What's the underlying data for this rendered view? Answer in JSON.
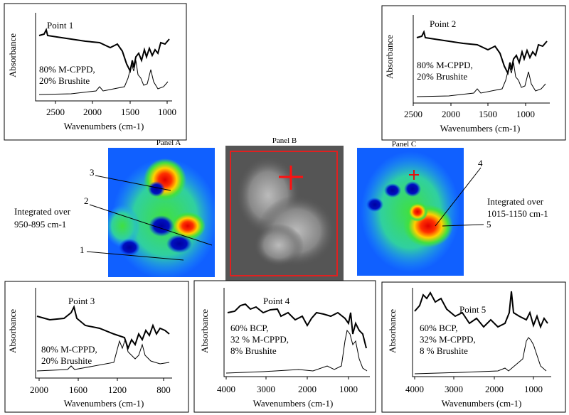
{
  "spectra": [
    {
      "label": "Point 1",
      "composition": [
        "80% M-CPPD,",
        "20% Brushite"
      ],
      "x_label": "Wavenumbers (cm-1)",
      "y_label": "Absorbance",
      "xticks": [
        "2500",
        "2000",
        "1500",
        "1000"
      ]
    },
    {
      "label": "Point 2",
      "composition": [
        "80% M-CPPD,",
        "20% Brushite"
      ],
      "x_label": "Wavenumbers (cm-1)",
      "y_label": "Absorbance",
      "xticks": [
        "2500",
        "2000",
        "1500",
        "1000"
      ]
    },
    {
      "label": "Point 3",
      "composition": [
        "80% M-CPPD,",
        "20% Brushite"
      ],
      "x_label": "Wavenumbers (cm-1)",
      "y_label": "Absorbance",
      "xticks": [
        "2000",
        "1600",
        "1200",
        "800"
      ]
    },
    {
      "label": "Point 4",
      "composition": [
        "60% BCP,",
        "32 % M-CPPD,",
        "8% Brushite"
      ],
      "x_label": "Wavenumbers (cm-1)",
      "y_label": "Absorbance",
      "xticks": [
        "4000",
        "3000",
        "2000",
        "1000"
      ]
    },
    {
      "label": "Point 5",
      "composition": [
        "60% BCP,",
        "32% M-CPPD,",
        "8 % Brushite"
      ],
      "x_label": "Wavenumbers (cm-1)",
      "y_label": "Absorbance",
      "xticks": [
        "4000",
        "3000",
        "2000",
        "1000"
      ]
    }
  ],
  "maps": [
    {
      "title": "Panel A"
    },
    {
      "title": "Panel B"
    },
    {
      "title": "Panel C"
    }
  ],
  "annotations": {
    "left": [
      "Integrated over",
      "950-895 cm-1"
    ],
    "right": [
      "Integrated over",
      "1015-1150 cm-1"
    ]
  },
  "markers": [
    "1",
    "2",
    "3",
    "4",
    "5"
  ]
}
